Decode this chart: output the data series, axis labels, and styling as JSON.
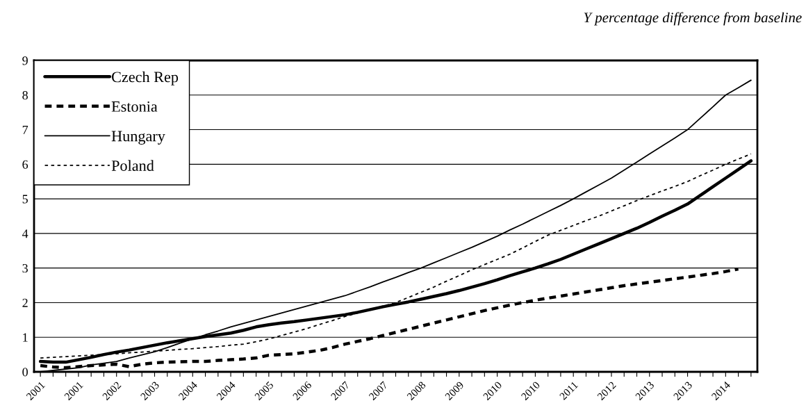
{
  "chart_data": {
    "type": "line",
    "title": "Y percentage difference from baseline",
    "categories": [
      "2001",
      null,
      null,
      "2001",
      null,
      null,
      "2002",
      null,
      null,
      "2003",
      null,
      null,
      "2004",
      null,
      null,
      "2004",
      null,
      null,
      "2005",
      null,
      null,
      "2006",
      null,
      null,
      "2007",
      null,
      null,
      "2007",
      null,
      null,
      "2008",
      null,
      null,
      "2009",
      null,
      null,
      "2010",
      null,
      null,
      "2010",
      null,
      null,
      "2011",
      null,
      null,
      "2012",
      null,
      null,
      "2013",
      null,
      null,
      "2013",
      null,
      null,
      "2014",
      null,
      null
    ],
    "series": [
      {
        "name": "Czech Rep",
        "color": "#000000",
        "line_style": "solid",
        "values": [
          0.3,
          0.28,
          0.28,
          0.35,
          0.42,
          0.5,
          0.57,
          0.63,
          0.7,
          0.77,
          0.84,
          0.9,
          0.96,
          1.02,
          1.07,
          1.12,
          1.2,
          1.3,
          1.36,
          1.41,
          1.45,
          1.5,
          1.55,
          1.6,
          1.65,
          1.72,
          1.8,
          1.88,
          1.95,
          2.02,
          2.1,
          2.18,
          2.26,
          2.35,
          2.45,
          2.55,
          2.66,
          2.78,
          2.89,
          3.0,
          3.12,
          3.25,
          3.4,
          3.55,
          3.7,
          3.85,
          4.0,
          4.15,
          4.32,
          4.5,
          4.67,
          4.85,
          5.1,
          5.35,
          5.6,
          5.85,
          6.1
        ]
      },
      {
        "name": "Estonia",
        "color": "#000000",
        "line_style": "dashed",
        "values": [
          0.18,
          0.14,
          0.12,
          0.15,
          0.18,
          0.2,
          0.22,
          0.15,
          0.22,
          0.26,
          0.28,
          0.29,
          0.3,
          0.3,
          0.33,
          0.35,
          0.37,
          0.4,
          0.48,
          0.5,
          0.52,
          0.57,
          0.62,
          0.7,
          0.8,
          0.88,
          0.96,
          1.05,
          1.14,
          1.23,
          1.32,
          1.41,
          1.5,
          1.59,
          1.68,
          1.77,
          1.85,
          1.93,
          2.0,
          2.07,
          2.13,
          2.19,
          2.25,
          2.31,
          2.37,
          2.43,
          2.49,
          2.54,
          2.59,
          2.64,
          2.69,
          2.74,
          2.79,
          2.84,
          2.9,
          2.97,
          null
        ]
      },
      {
        "name": "Hungary",
        "color": "#000000",
        "line_style": "solid",
        "values": [
          0,
          0.04,
          0.08,
          0.12,
          0.2,
          0.25,
          0.3,
          0.4,
          0.49,
          0.58,
          0.7,
          0.83,
          0.95,
          1.07,
          1.18,
          1.3,
          1.4,
          1.5,
          1.6,
          1.7,
          1.8,
          1.9,
          2.0,
          2.1,
          2.2,
          2.33,
          2.46,
          2.6,
          2.73,
          2.87,
          3.0,
          3.15,
          3.3,
          3.45,
          3.6,
          3.76,
          3.92,
          4.1,
          4.27,
          4.45,
          4.63,
          4.81,
          5.0,
          5.2,
          5.4,
          5.6,
          5.83,
          6.06,
          6.3,
          6.53,
          6.76,
          7.0,
          7.33,
          7.66,
          8.0,
          8.21,
          8.43
        ]
      },
      {
        "name": "Poland",
        "color": "#000000",
        "line_style": "dotted",
        "values": [
          0.4,
          0.42,
          0.44,
          0.46,
          0.48,
          0.5,
          0.52,
          0.55,
          0.57,
          0.6,
          0.62,
          0.65,
          0.67,
          0.7,
          0.73,
          0.77,
          0.8,
          0.87,
          0.95,
          1.05,
          1.15,
          1.25,
          1.37,
          1.48,
          1.6,
          1.7,
          1.8,
          1.9,
          2.0,
          2.15,
          2.3,
          2.45,
          2.62,
          2.78,
          2.95,
          3.1,
          3.25,
          3.4,
          3.58,
          3.77,
          3.95,
          4.09,
          4.23,
          4.37,
          4.5,
          4.65,
          4.8,
          4.95,
          5.09,
          5.23,
          5.36,
          5.5,
          5.67,
          5.83,
          6.0,
          6.15,
          6.3
        ]
      }
    ],
    "ylim": [
      0,
      9
    ],
    "yticks": [
      0,
      1,
      2,
      3,
      4,
      5,
      6,
      7,
      8,
      9
    ],
    "grid": "y",
    "legend": "top left",
    "marker": "none"
  }
}
